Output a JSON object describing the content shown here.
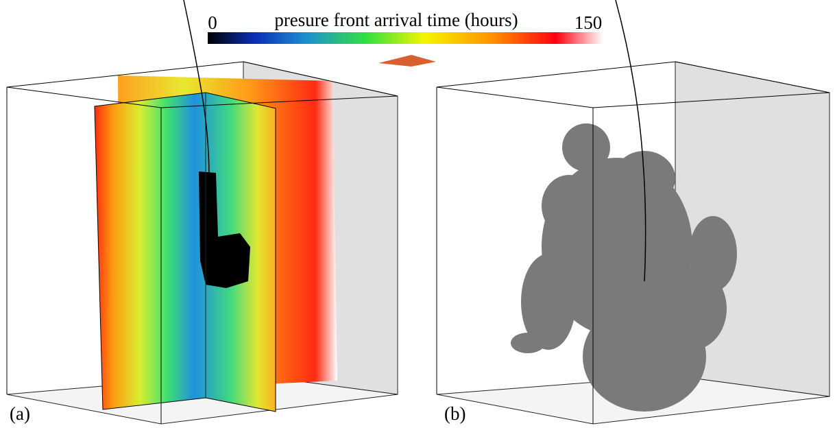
{
  "colorbar": {
    "title": "presure front arrival time (hours)",
    "min": 0,
    "max": 150
  },
  "panels": [
    {
      "label": "(a)"
    },
    {
      "label": "(b)"
    }
  ]
}
